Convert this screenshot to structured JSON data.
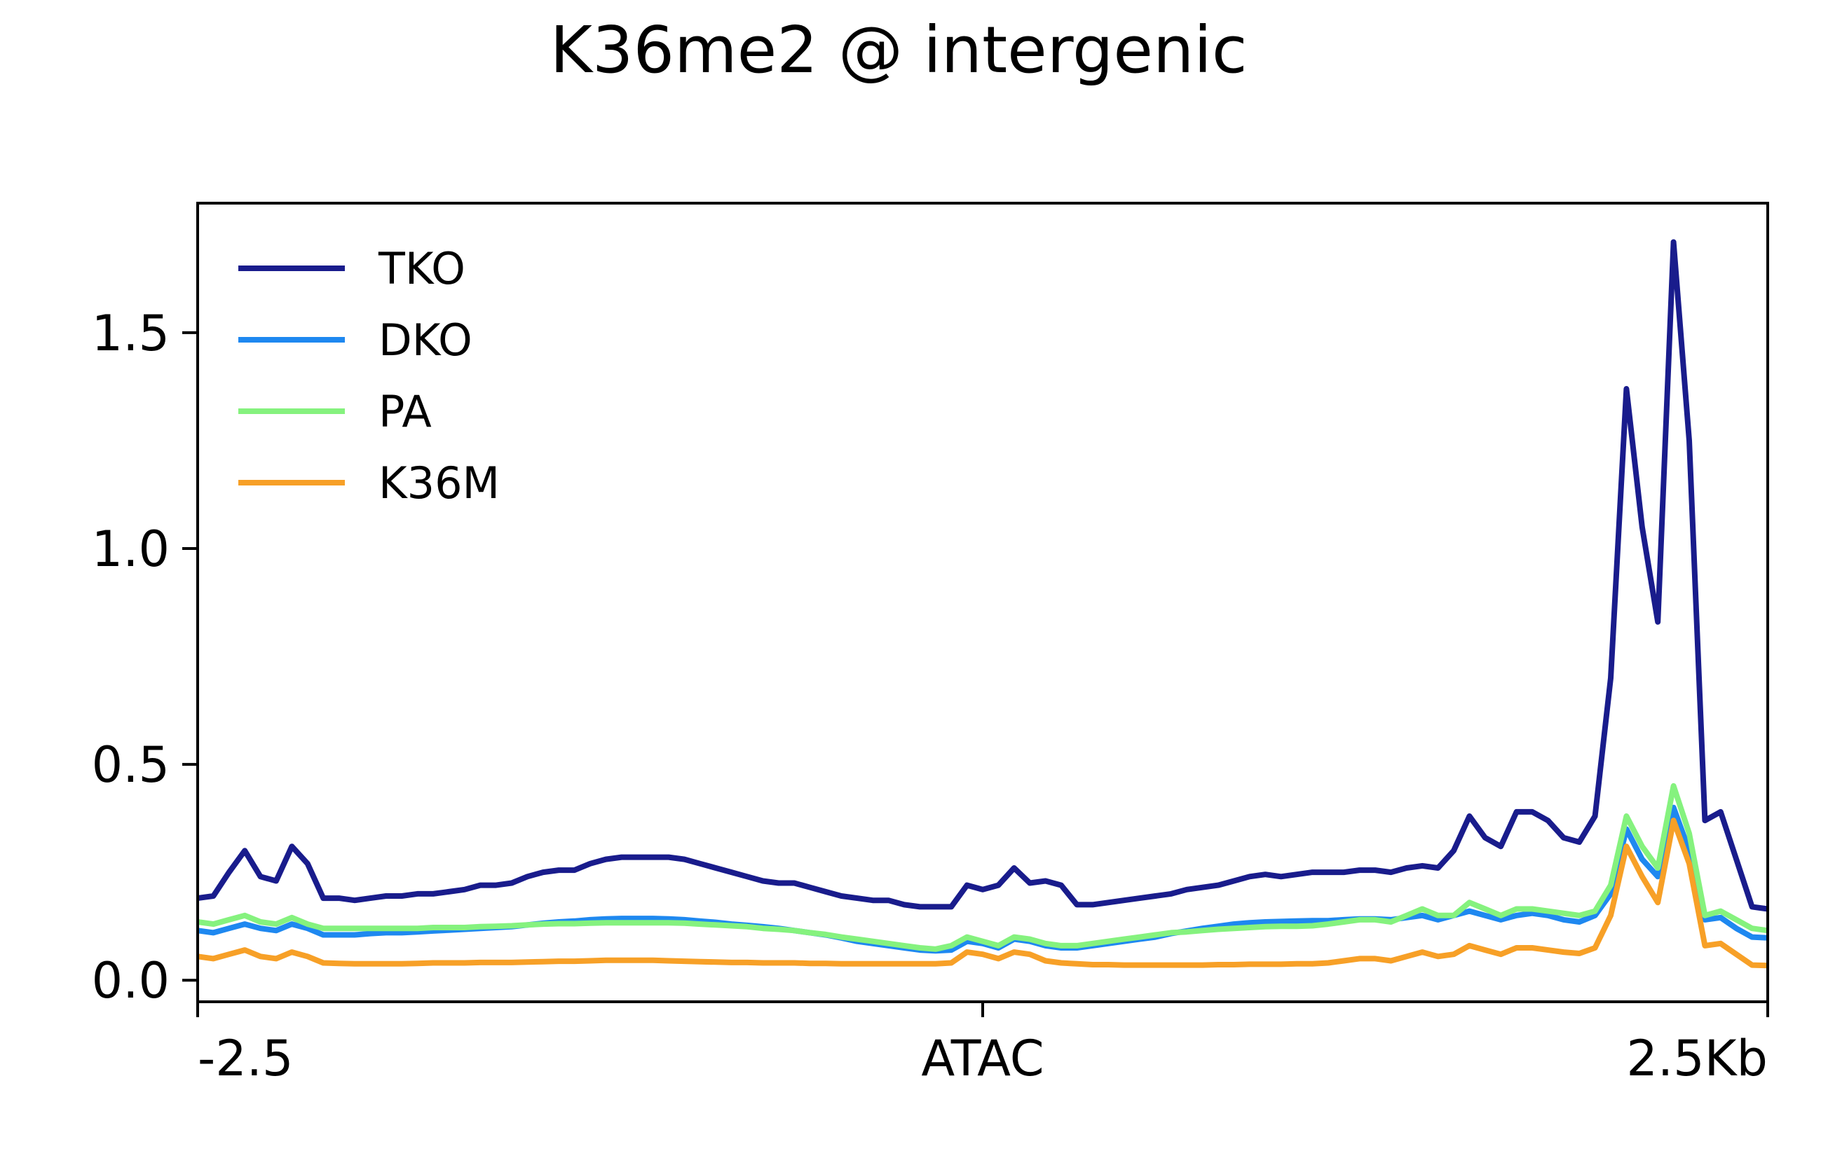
{
  "chart_data": {
    "type": "line",
    "title": "K36me2 @ intergenic",
    "xlabel": "",
    "ylabel": "",
    "x_range": [
      0,
      100
    ],
    "x_ticks": [
      {
        "x": 0,
        "label": "-2.5"
      },
      {
        "x": 50,
        "label": "ATAC"
      },
      {
        "x": 100,
        "label": "2.5Kb"
      }
    ],
    "ylim": [
      -0.05,
      1.8
    ],
    "y_ticks": [
      {
        "y": 0.0,
        "label": "0.0"
      },
      {
        "y": 0.5,
        "label": "0.5"
      },
      {
        "y": 1.0,
        "label": "1.0"
      },
      {
        "y": 1.5,
        "label": "1.5"
      }
    ],
    "grid": false,
    "legend": "top-left",
    "series": [
      {
        "name": "TKO",
        "color": "#191c8c",
        "values": [
          0.19,
          0.195,
          0.25,
          0.3,
          0.24,
          0.23,
          0.31,
          0.27,
          0.19,
          0.19,
          0.185,
          0.19,
          0.195,
          0.195,
          0.2,
          0.2,
          0.205,
          0.21,
          0.22,
          0.22,
          0.225,
          0.24,
          0.25,
          0.255,
          0.255,
          0.27,
          0.28,
          0.285,
          0.285,
          0.285,
          0.285,
          0.28,
          0.27,
          0.26,
          0.25,
          0.24,
          0.23,
          0.225,
          0.225,
          0.215,
          0.205,
          0.195,
          0.19,
          0.185,
          0.185,
          0.175,
          0.17,
          0.17,
          0.17,
          0.22,
          0.21,
          0.22,
          0.26,
          0.225,
          0.23,
          0.22,
          0.175,
          0.175,
          0.18,
          0.185,
          0.19,
          0.195,
          0.2,
          0.21,
          0.215,
          0.22,
          0.23,
          0.24,
          0.245,
          0.24,
          0.245,
          0.25,
          0.25,
          0.25,
          0.255,
          0.255,
          0.25,
          0.26,
          0.265,
          0.26,
          0.3,
          0.38,
          0.33,
          0.31,
          0.39,
          0.39,
          0.37,
          0.33,
          0.32,
          0.38,
          0.7,
          1.37,
          1.05,
          0.83,
          1.71,
          1.25,
          0.37,
          0.39,
          0.28,
          0.17,
          0.165
        ]
      },
      {
        "name": "DKO",
        "color": "#1e88f0",
        "values": [
          0.115,
          0.11,
          0.12,
          0.13,
          0.12,
          0.115,
          0.13,
          0.12,
          0.105,
          0.105,
          0.105,
          0.108,
          0.11,
          0.11,
          0.112,
          0.114,
          0.116,
          0.118,
          0.12,
          0.122,
          0.124,
          0.128,
          0.132,
          0.135,
          0.137,
          0.14,
          0.142,
          0.143,
          0.143,
          0.143,
          0.142,
          0.14,
          0.137,
          0.134,
          0.13,
          0.127,
          0.124,
          0.12,
          0.115,
          0.11,
          0.105,
          0.098,
          0.09,
          0.085,
          0.08,
          0.075,
          0.07,
          0.068,
          0.07,
          0.09,
          0.085,
          0.075,
          0.095,
          0.09,
          0.08,
          0.075,
          0.075,
          0.08,
          0.085,
          0.09,
          0.095,
          0.1,
          0.108,
          0.114,
          0.12,
          0.125,
          0.13,
          0.133,
          0.135,
          0.136,
          0.137,
          0.138,
          0.138,
          0.14,
          0.142,
          0.142,
          0.14,
          0.145,
          0.15,
          0.14,
          0.15,
          0.16,
          0.15,
          0.14,
          0.15,
          0.155,
          0.15,
          0.14,
          0.135,
          0.15,
          0.2,
          0.35,
          0.28,
          0.24,
          0.4,
          0.3,
          0.14,
          0.145,
          0.12,
          0.1,
          0.098
        ]
      },
      {
        "name": "PA",
        "color": "#85f27e",
        "values": [
          0.135,
          0.13,
          0.14,
          0.15,
          0.135,
          0.13,
          0.145,
          0.13,
          0.12,
          0.12,
          0.12,
          0.12,
          0.12,
          0.12,
          0.12,
          0.122,
          0.122,
          0.122,
          0.124,
          0.125,
          0.126,
          0.128,
          0.13,
          0.131,
          0.131,
          0.132,
          0.133,
          0.133,
          0.133,
          0.133,
          0.133,
          0.132,
          0.13,
          0.128,
          0.126,
          0.124,
          0.12,
          0.118,
          0.115,
          0.11,
          0.106,
          0.1,
          0.095,
          0.09,
          0.085,
          0.08,
          0.075,
          0.072,
          0.08,
          0.1,
          0.09,
          0.08,
          0.1,
          0.095,
          0.085,
          0.08,
          0.08,
          0.085,
          0.09,
          0.095,
          0.1,
          0.105,
          0.11,
          0.112,
          0.115,
          0.118,
          0.12,
          0.122,
          0.124,
          0.125,
          0.125,
          0.126,
          0.13,
          0.135,
          0.14,
          0.14,
          0.135,
          0.15,
          0.165,
          0.15,
          0.15,
          0.18,
          0.165,
          0.15,
          0.165,
          0.165,
          0.16,
          0.155,
          0.15,
          0.16,
          0.22,
          0.38,
          0.31,
          0.26,
          0.45,
          0.34,
          0.15,
          0.16,
          0.14,
          0.12,
          0.115
        ]
      },
      {
        "name": "K36M",
        "color": "#f7a027",
        "values": [
          0.055,
          0.05,
          0.06,
          0.07,
          0.055,
          0.05,
          0.065,
          0.055,
          0.04,
          0.039,
          0.038,
          0.038,
          0.038,
          0.038,
          0.039,
          0.04,
          0.04,
          0.04,
          0.041,
          0.041,
          0.041,
          0.042,
          0.043,
          0.044,
          0.044,
          0.045,
          0.046,
          0.046,
          0.046,
          0.046,
          0.045,
          0.044,
          0.043,
          0.042,
          0.041,
          0.041,
          0.04,
          0.04,
          0.04,
          0.039,
          0.039,
          0.038,
          0.038,
          0.038,
          0.038,
          0.038,
          0.038,
          0.038,
          0.04,
          0.065,
          0.06,
          0.05,
          0.065,
          0.06,
          0.045,
          0.04,
          0.038,
          0.036,
          0.036,
          0.035,
          0.035,
          0.035,
          0.035,
          0.035,
          0.035,
          0.036,
          0.036,
          0.037,
          0.037,
          0.037,
          0.038,
          0.038,
          0.04,
          0.045,
          0.05,
          0.05,
          0.045,
          0.055,
          0.065,
          0.055,
          0.06,
          0.08,
          0.07,
          0.06,
          0.075,
          0.075,
          0.07,
          0.065,
          0.062,
          0.075,
          0.15,
          0.31,
          0.24,
          0.18,
          0.37,
          0.27,
          0.08,
          0.085,
          0.06,
          0.035,
          0.034
        ]
      }
    ]
  }
}
